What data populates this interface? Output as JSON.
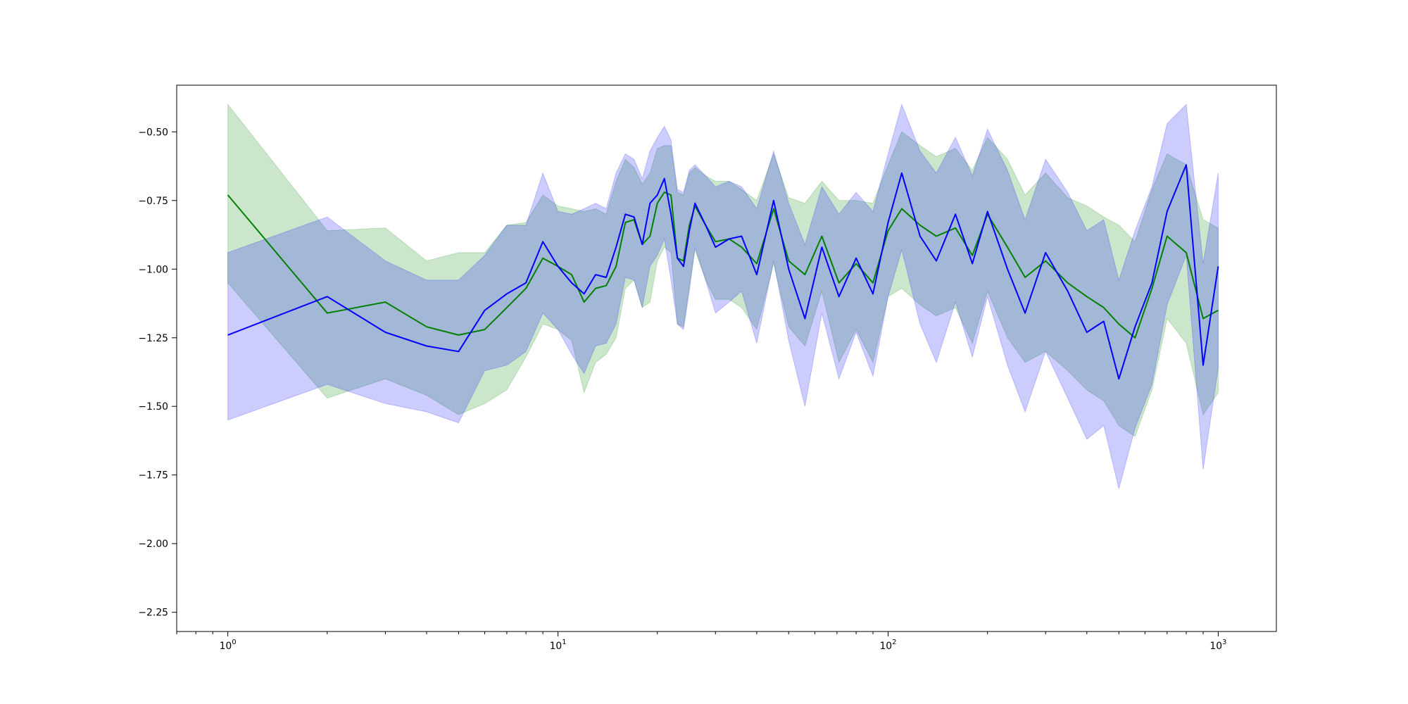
{
  "chart_data": {
    "type": "line",
    "title": "",
    "xlabel": "",
    "ylabel": "",
    "xscale": "log",
    "xlim": [
      0.7,
      1500
    ],
    "ylim": [
      -2.32,
      -0.33
    ],
    "grid": false,
    "legend": "none",
    "x_ticks": [
      {
        "value": 1,
        "base": "10",
        "exp": "0"
      },
      {
        "value": 10,
        "base": "10",
        "exp": "1"
      },
      {
        "value": 100,
        "base": "10",
        "exp": "2"
      },
      {
        "value": 1000,
        "base": "10",
        "exp": "3"
      }
    ],
    "y_ticks": [
      {
        "value": -0.5,
        "label": "−0.50"
      },
      {
        "value": -0.75,
        "label": "−0.75"
      },
      {
        "value": -1.0,
        "label": "−1.00"
      },
      {
        "value": -1.25,
        "label": "−1.25"
      },
      {
        "value": -1.5,
        "label": "−1.50"
      },
      {
        "value": -1.75,
        "label": "−1.75"
      },
      {
        "value": -2.0,
        "label": "−2.00"
      },
      {
        "value": -2.25,
        "label": "−2.25"
      }
    ],
    "series": [
      {
        "color": "#008000",
        "band_color": "#008000",
        "band_opacity": 0.2,
        "x": [
          1,
          2,
          3,
          4,
          5,
          6,
          7,
          8,
          9,
          10,
          11,
          12,
          13,
          14,
          15,
          16,
          17,
          18,
          19,
          20,
          21,
          22,
          23,
          24,
          25,
          26,
          28,
          30,
          33,
          36,
          40,
          45,
          50,
          56,
          63,
          71,
          80,
          90,
          100,
          110,
          125,
          140,
          160,
          180,
          200,
          230,
          260,
          300,
          350,
          400,
          450,
          500,
          560,
          630,
          700,
          800,
          900,
          1000
        ],
        "y": [
          -0.73,
          -1.16,
          -1.12,
          -1.21,
          -1.24,
          -1.22,
          -1.14,
          -1.07,
          -0.96,
          -0.99,
          -1.02,
          -1.12,
          -1.07,
          -1.06,
          -0.99,
          -0.83,
          -0.82,
          -0.91,
          -0.88,
          -0.76,
          -0.72,
          -0.73,
          -0.96,
          -0.97,
          -0.84,
          -0.77,
          -0.84,
          -0.9,
          -0.89,
          -0.92,
          -0.98,
          -0.78,
          -0.97,
          -1.02,
          -0.88,
          -1.05,
          -0.98,
          -1.05,
          -0.86,
          -0.78,
          -0.84,
          -0.88,
          -0.85,
          -0.95,
          -0.8,
          -0.92,
          -1.03,
          -0.97,
          -1.05,
          -1.1,
          -1.14,
          -1.2,
          -1.25,
          -1.07,
          -0.88,
          -0.94,
          -1.18,
          -1.15
        ],
        "upper": [
          -0.4,
          -0.86,
          -0.85,
          -0.97,
          -0.94,
          -0.94,
          -0.84,
          -0.83,
          -0.73,
          -0.77,
          -0.78,
          -0.79,
          -0.78,
          -0.8,
          -0.68,
          -0.6,
          -0.63,
          -0.69,
          -0.65,
          -0.56,
          -0.55,
          -0.55,
          -0.72,
          -0.73,
          -0.65,
          -0.63,
          -0.66,
          -0.68,
          -0.68,
          -0.71,
          -0.75,
          -0.58,
          -0.74,
          -0.76,
          -0.68,
          -0.75,
          -0.75,
          -0.76,
          -0.62,
          -0.5,
          -0.55,
          -0.59,
          -0.56,
          -0.64,
          -0.52,
          -0.6,
          -0.73,
          -0.65,
          -0.74,
          -0.77,
          -0.81,
          -0.84,
          -0.9,
          -0.71,
          -0.58,
          -0.62,
          -0.82,
          -0.85
        ],
        "lower": [
          -1.05,
          -1.47,
          -1.4,
          -1.46,
          -1.53,
          -1.49,
          -1.44,
          -1.32,
          -1.2,
          -1.22,
          -1.26,
          -1.45,
          -1.34,
          -1.31,
          -1.25,
          -1.07,
          -1.04,
          -1.14,
          -1.12,
          -0.97,
          -0.92,
          -0.94,
          -1.2,
          -1.21,
          -1.06,
          -0.93,
          -1.04,
          -1.11,
          -1.11,
          -1.14,
          -1.22,
          -0.98,
          -1.21,
          -1.28,
          -1.08,
          -1.34,
          -1.22,
          -1.34,
          -1.1,
          -1.07,
          -1.13,
          -1.17,
          -1.14,
          -1.27,
          -1.08,
          -1.25,
          -1.34,
          -1.3,
          -1.37,
          -1.44,
          -1.48,
          -1.57,
          -1.61,
          -1.44,
          -1.18,
          -1.27,
          -1.53,
          -1.45
        ]
      },
      {
        "color": "#0000ff",
        "band_color": "#0000ff",
        "band_opacity": 0.2,
        "x": [
          1,
          2,
          3,
          4,
          5,
          6,
          7,
          8,
          9,
          10,
          11,
          12,
          13,
          14,
          15,
          16,
          17,
          18,
          19,
          20,
          21,
          22,
          23,
          24,
          25,
          26,
          28,
          30,
          33,
          36,
          40,
          45,
          50,
          56,
          63,
          71,
          80,
          90,
          100,
          110,
          125,
          140,
          160,
          180,
          200,
          230,
          260,
          300,
          350,
          400,
          450,
          500,
          560,
          630,
          700,
          800,
          900,
          1000
        ],
        "y": [
          -1.24,
          -1.1,
          -1.23,
          -1.28,
          -1.3,
          -1.15,
          -1.09,
          -1.05,
          -0.9,
          -0.99,
          -1.05,
          -1.09,
          -1.02,
          -1.03,
          -0.92,
          -0.8,
          -0.81,
          -0.91,
          -0.76,
          -0.73,
          -0.67,
          -0.8,
          -0.96,
          -0.99,
          -0.86,
          -0.76,
          -0.84,
          -0.92,
          -0.89,
          -0.88,
          -1.02,
          -0.75,
          -1.0,
          -1.18,
          -0.92,
          -1.1,
          -0.96,
          -1.09,
          -0.83,
          -0.65,
          -0.88,
          -0.97,
          -0.8,
          -0.98,
          -0.79,
          -1.0,
          -1.16,
          -0.94,
          -1.08,
          -1.23,
          -1.19,
          -1.4,
          -1.21,
          -1.05,
          -0.79,
          -0.62,
          -1.35,
          -0.99
        ],
        "upper": [
          -0.94,
          -0.81,
          -0.97,
          -1.04,
          -1.04,
          -0.95,
          -0.84,
          -0.84,
          -0.65,
          -0.79,
          -0.8,
          -0.78,
          -0.76,
          -0.78,
          -0.65,
          -0.58,
          -0.6,
          -0.67,
          -0.57,
          -0.52,
          -0.48,
          -0.53,
          -0.71,
          -0.72,
          -0.64,
          -0.62,
          -0.66,
          -0.7,
          -0.68,
          -0.7,
          -0.78,
          -0.57,
          -0.76,
          -0.91,
          -0.7,
          -0.8,
          -0.72,
          -0.79,
          -0.58,
          -0.4,
          -0.57,
          -0.65,
          -0.52,
          -0.66,
          -0.49,
          -0.64,
          -0.82,
          -0.6,
          -0.72,
          -0.86,
          -0.82,
          -1.04,
          -0.86,
          -0.7,
          -0.47,
          -0.4,
          -0.98,
          -0.65
        ],
        "lower": [
          -1.55,
          -1.42,
          -1.49,
          -1.52,
          -1.56,
          -1.37,
          -1.35,
          -1.3,
          -1.16,
          -1.22,
          -1.31,
          -1.38,
          -1.28,
          -1.27,
          -1.2,
          -1.03,
          -1.04,
          -1.14,
          -0.99,
          -0.95,
          -0.89,
          -1.04,
          -1.2,
          -1.22,
          -1.08,
          -0.92,
          -1.04,
          -1.16,
          -1.12,
          -1.08,
          -1.27,
          -0.97,
          -1.26,
          -1.5,
          -1.16,
          -1.4,
          -1.23,
          -1.39,
          -1.1,
          -0.93,
          -1.2,
          -1.34,
          -1.12,
          -1.32,
          -1.1,
          -1.35,
          -1.52,
          -1.3,
          -1.47,
          -1.62,
          -1.57,
          -1.8,
          -1.58,
          -1.42,
          -1.13,
          -0.95,
          -1.73,
          -1.36
        ]
      }
    ]
  }
}
